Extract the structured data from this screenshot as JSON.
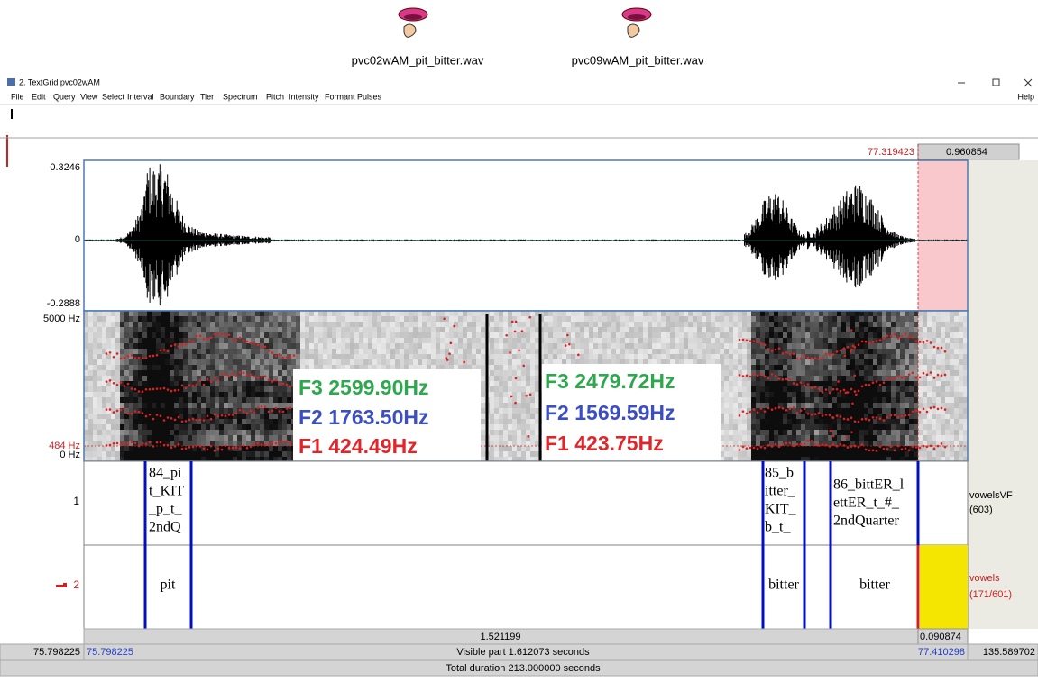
{
  "desktop_icons": [
    {
      "label": "pvc02wAM_pit_bitter.wav"
    },
    {
      "label": "pvc09wAM_pit_bitter.wav"
    }
  ],
  "window": {
    "title": "2. TextGrid pvc02wAM",
    "menu": [
      "File",
      "Edit",
      "Query",
      "View",
      "Select",
      "Interval",
      "Boundary",
      "Tier",
      "Spectrum",
      "Pitch",
      "Intensity",
      "Formant",
      "Pulses"
    ],
    "help": "Help"
  },
  "selection": {
    "end_time": "77.319423",
    "duration": "0.960854"
  },
  "waveform": {
    "max": "0.3246",
    "zero": "0",
    "min": "-0.2888"
  },
  "spectrogram": {
    "max": "5000 Hz",
    "cursor": "484 Hz",
    "min": "0 Hz"
  },
  "formant_notes": [
    {
      "f3": "F3 2599.90Hz",
      "f2": "F2 1763.50Hz",
      "f1": "F1 424.49Hz"
    },
    {
      "f3": "F3 2479.72Hz",
      "f2": "F2 1569.59Hz",
      "f1": "F1 423.75Hz"
    }
  ],
  "tiers": [
    {
      "number": "1",
      "name": "vowelsVF",
      "count": "(603)",
      "intervals": [
        {
          "lines": [
            "84_pi",
            "t_KIT",
            "_p_t_",
            "2ndQ"
          ]
        },
        {
          "lines": [
            "85_b",
            "itter_",
            "KIT_",
            "b_t_"
          ]
        },
        {
          "lines": [
            "86_bittER_l",
            "ettER_t_#_",
            "2ndQuarter"
          ]
        }
      ]
    },
    {
      "number": "2",
      "name": "vowels",
      "count": "(171/601)",
      "intervals": [
        {
          "lines": [
            "pit"
          ]
        },
        {
          "lines": [
            "bitter"
          ]
        },
        {
          "lines": [
            "bitter"
          ]
        }
      ]
    }
  ],
  "bottom": {
    "selection_width": "1.521199",
    "right_width": "0.090874",
    "window_start": "75.798225",
    "visible_start": "75.798225",
    "visible_part": "Visible part 1.612073 seconds",
    "visible_end": "77.410298",
    "remaining": "135.589702",
    "total": "Total duration 213.000000 seconds"
  }
}
